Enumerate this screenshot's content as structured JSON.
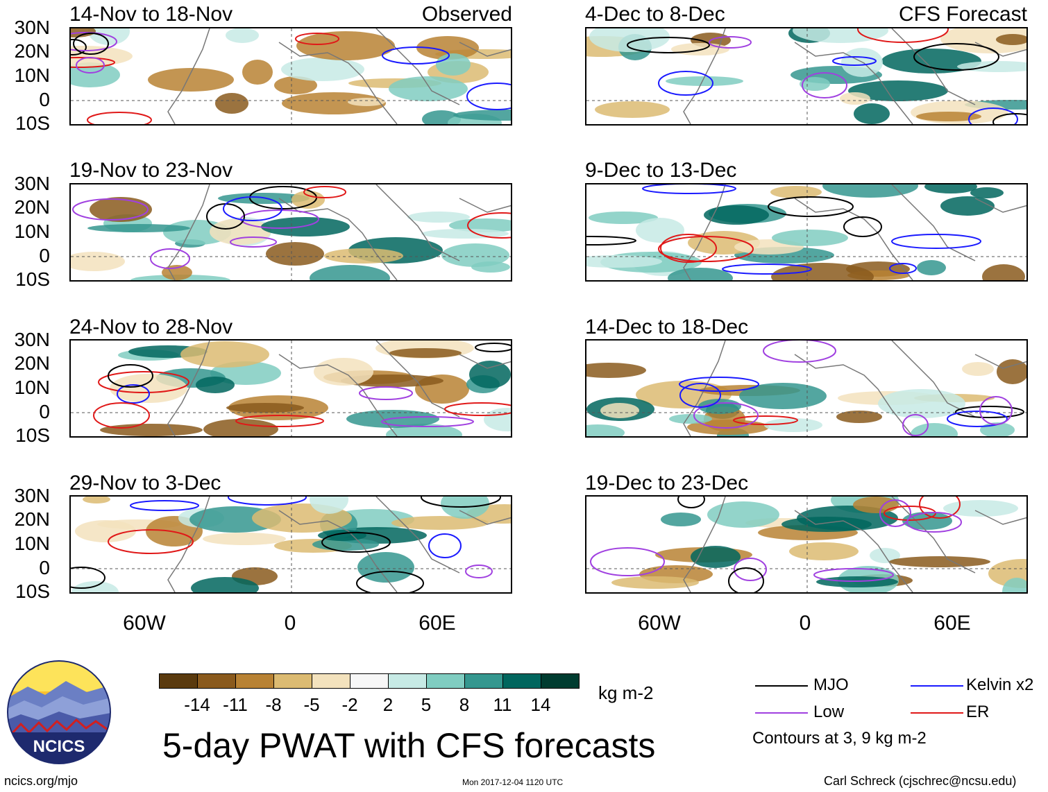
{
  "columns": {
    "left": {
      "tag": "Observed",
      "panels": [
        "14-Nov to 18-Nov",
        "19-Nov to 23-Nov",
        "24-Nov to 28-Nov",
        "29-Nov to 3-Dec"
      ]
    },
    "right": {
      "tag": "CFS Forecast",
      "panels": [
        "4-Dec to 8-Dec",
        "9-Dec to 13-Dec",
        "14-Dec to 18-Dec",
        "19-Dec to 23-Dec"
      ]
    }
  },
  "lat_labels": [
    "30N",
    "20N",
    "10N",
    "0",
    "10S"
  ],
  "lon_labels": [
    "60W",
    "0",
    "60E"
  ],
  "colorbar": {
    "unit": "kg m-2",
    "colors": [
      "#5a3a0e",
      "#8a5a1d",
      "#b88234",
      "#dcbb72",
      "#f3e2bd",
      "#f7f7f7",
      "#c7eae5",
      "#80cdc1",
      "#35978f",
      "#01665e",
      "#003c30"
    ],
    "labels": [
      "-14",
      "-11",
      "-8",
      "-5",
      "-2",
      "2",
      "5",
      "8",
      "11",
      "14"
    ]
  },
  "legend": {
    "mjo": {
      "label": "MJO",
      "color": "#000000"
    },
    "kelvin": {
      "label": "Kelvin x2",
      "color": "#1a1aff"
    },
    "low": {
      "label": "Low",
      "color": "#a040e0"
    },
    "er": {
      "label": "ER",
      "color": "#e01818"
    },
    "note": "Contours at 3, 9 kg m-2"
  },
  "logo": {
    "text": "NCICS"
  },
  "title": "5-day PWAT with CFS forecasts",
  "footer": {
    "url": "ncics.org/mjo",
    "timestamp": "Mon 2017-12-04 1120 UTC",
    "credit": "Carl Schreck (cjschrec@ncsu.edu)"
  }
}
